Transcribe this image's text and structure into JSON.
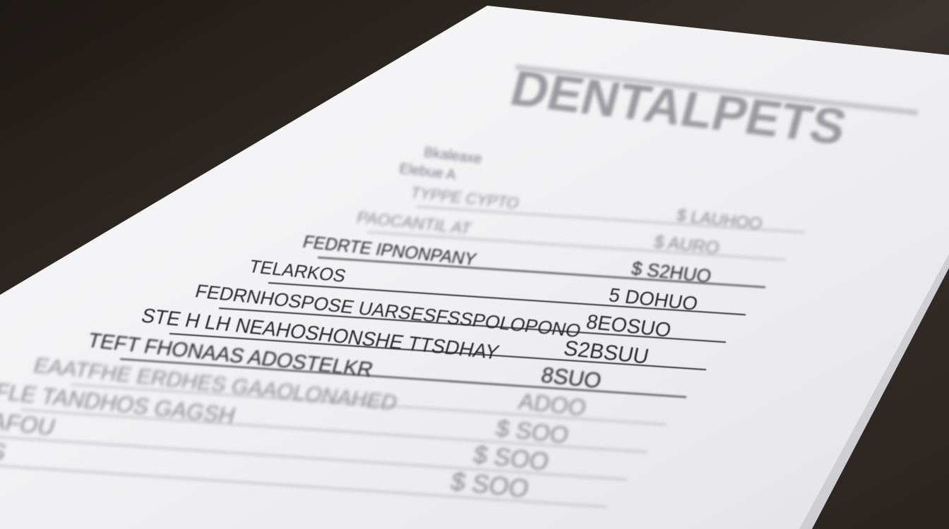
{
  "document": {
    "heading": "DENTALPETS",
    "subheading_lines": [
      "Bkaleaxe",
      "Elebue   A"
    ],
    "rows": [
      {
        "label": "TYPPE CYPTO",
        "amount": "$ LAUHOO"
      },
      {
        "label": "PAOCANTIL AT",
        "amount": "$ AURO"
      },
      {
        "label": "FEDRTE IPNONPANY",
        "amount": "$ S2HUO"
      },
      {
        "label": "TELARKOS",
        "amount": "5 DOHUO"
      },
      {
        "label": "FEDRNHOSPOSE UARSESFSSPOLOPONO",
        "amount": "8EOSUO"
      },
      {
        "label": "STE H LH NEAHOSHONSHE TTSDHAY",
        "amount": "S2BSUU"
      },
      {
        "label": "TEFT FHONAAS ADOSTELKR",
        "amount": "8SUO"
      },
      {
        "label": "EAATFHE ERDHES GAAOLONAHED",
        "amount": "ADOO"
      },
      {
        "label": "EFLE TANDHOS GAGSH",
        "amount": "$ SOO"
      },
      {
        "label": "EDHKAFOU",
        "amount": "$ SOO"
      },
      {
        "label": "KDOHFHSS",
        "amount": "$ SOO"
      }
    ]
  },
  "colors": {
    "desk": "#2a2420",
    "paper": "#f2f2f3",
    "ink": "#2b2b2e"
  }
}
